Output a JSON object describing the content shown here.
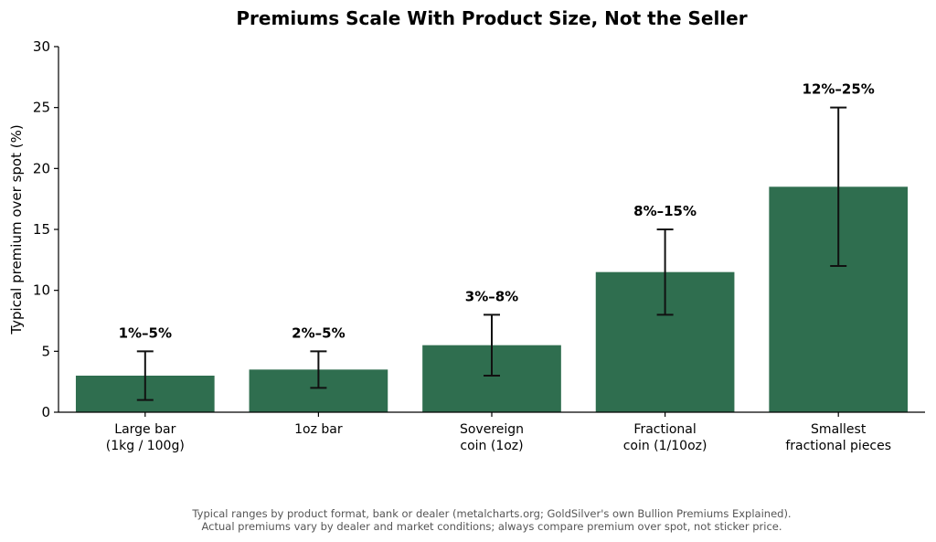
{
  "chart_data": {
    "type": "bar",
    "title": "Premiums Scale With Product Size, Not the Seller",
    "xlabel": "",
    "ylabel": "Typical premium over spot (%)",
    "ylim": [
      0,
      30
    ],
    "yticks": [
      "0",
      "5",
      "10",
      "15",
      "20",
      "25",
      "30"
    ],
    "grid": false,
    "categories": [
      [
        "Large bar",
        "(1kg / 100g)"
      ],
      [
        "1oz bar"
      ],
      [
        "Sovereign",
        "coin (1oz)"
      ],
      [
        "Fractional",
        "coin (1/10oz)"
      ],
      [
        "Smallest",
        "fractional pieces"
      ]
    ],
    "values": [
      3,
      3.5,
      5.5,
      11.5,
      18.5
    ],
    "error_low": [
      1,
      2,
      3,
      8,
      12
    ],
    "error_high": [
      5,
      5,
      8,
      15,
      25
    ],
    "data_labels": [
      "1%–5%",
      "2%–5%",
      "3%–8%",
      "8%–15%",
      "12%–25%"
    ],
    "bar_color": "#2f6e4f",
    "error_color": "#111111"
  },
  "footnote": [
    "Typical ranges by product format, bank or dealer (metalcharts.org; GoldSilver's own Bullion Premiums Explained).",
    "Actual premiums vary by dealer and market conditions; always compare premium over spot, not sticker price."
  ]
}
